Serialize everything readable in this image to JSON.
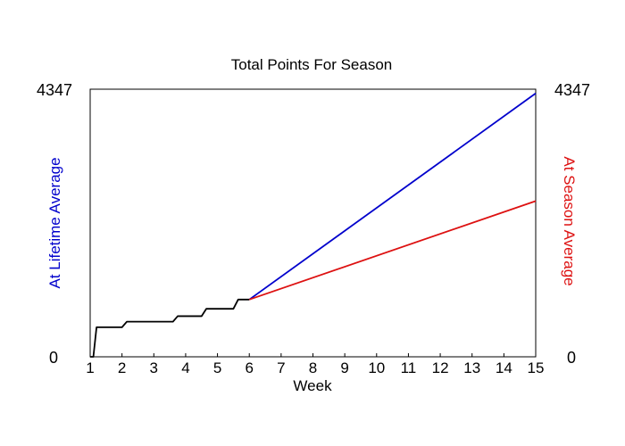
{
  "chart_data": {
    "type": "line",
    "title": "Total Points For Season",
    "xlabel": "Week",
    "ylabel_left": "At Lifetime Average",
    "ylabel_right": "At Season Average",
    "xlim": [
      1,
      15
    ],
    "ylim": [
      0,
      4347
    ],
    "x_ticks": [
      1,
      2,
      3,
      4,
      5,
      6,
      7,
      8,
      9,
      10,
      11,
      12,
      13,
      14,
      15
    ],
    "y_left_tick_labels": [
      "0",
      "4347"
    ],
    "y_right_tick_labels": [
      "0",
      "4347"
    ],
    "grid": false,
    "colors": {
      "actual": "#000000",
      "lifetime": "#0000cc",
      "season": "#dd1111",
      "left_label": "#0000cc",
      "right_label": "#dd1111"
    },
    "series": [
      {
        "x": [
          1.0,
          1.1,
          1.2,
          2.0,
          2.15,
          3.6,
          3.75,
          4.5,
          4.65,
          5.5,
          5.65,
          6.0
        ],
        "y": [
          0,
          0,
          480,
          480,
          570,
          570,
          660,
          660,
          780,
          780,
          930,
          930
        ]
      },
      {
        "x": [
          6.0,
          15.0
        ],
        "y": [
          930,
          4280
        ]
      },
      {
        "x": [
          6.0,
          15.0
        ],
        "y": [
          930,
          2530
        ]
      }
    ]
  }
}
